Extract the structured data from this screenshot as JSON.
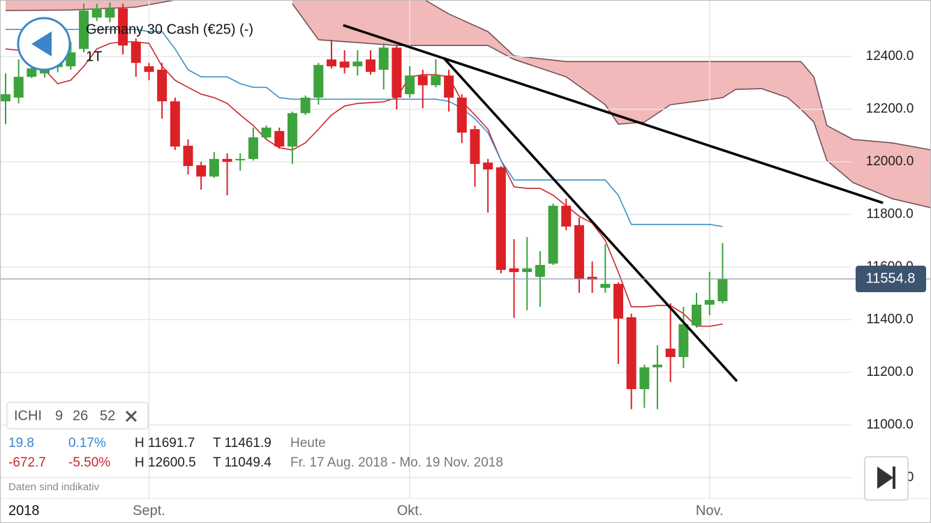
{
  "header": {
    "title": "Germany 30 Cash (€25) (-)",
    "period": "1T"
  },
  "indicator": {
    "name": "ICHI",
    "params": [
      9,
      26,
      52
    ]
  },
  "stats": {
    "rows": [
      [
        "19.8",
        "0.17%",
        "H 11691.7",
        "T 11461.9",
        "Heute"
      ],
      [
        "-672.7",
        "-5.50%",
        "H 12600.5",
        "T 11049.4",
        "Fr. 17 Aug. 2018 - Mo. 19 Nov. 2018"
      ]
    ]
  },
  "note": "Daten sind indikativ",
  "chart_data": {
    "type": "candlestick",
    "year_label": "2018",
    "categories": [
      null,
      null,
      null,
      null,
      null,
      null,
      null,
      null,
      null,
      null,
      null,
      "Sept.",
      null,
      null,
      null,
      null,
      null,
      null,
      null,
      null,
      null,
      null,
      null,
      null,
      null,
      null,
      null,
      null,
      null,
      null,
      null,
      "Okt.",
      null,
      null,
      null,
      null,
      null,
      null,
      null,
      null,
      null,
      null,
      null,
      null,
      null,
      null,
      null,
      null,
      null,
      null,
      null,
      null,
      null,
      null,
      "Nov.",
      null
    ],
    "open": [
      12230,
      12244,
      12323,
      12336,
      12360,
      12363,
      12429,
      12548,
      12548,
      12583,
      12456,
      12363,
      12350,
      12230,
      12061,
      11987,
      11944,
      12011,
      12008,
      12011,
      12093,
      12117,
      12058,
      12185,
      12244,
      12389,
      12381,
      12363,
      12389,
      12350,
      12434,
      12257,
      12328,
      12291,
      12328,
      12244,
      12124,
      11997,
      11979,
      11595,
      11581,
      11563,
      11613,
      11833,
      11759,
      11563,
      11521,
      11536,
      11409,
      11136,
      11219,
      11290,
      11258,
      11378,
      11457,
      11470
    ],
    "high": [
      12336,
      12389,
      12381,
      12390,
      12420,
      12456,
      12601,
      12601,
      12605,
      12601,
      12469,
      12376,
      12376,
      12244,
      12085,
      12000,
      12037,
      12032,
      12032,
      12130,
      12138,
      12130,
      12191,
      12252,
      12376,
      12464,
      12424,
      12424,
      12424,
      12450,
      12442,
      12363,
      12350,
      12389,
      12350,
      12257,
      12138,
      12011,
      11984,
      11706,
      11714,
      11661,
      11841,
      11860,
      11788,
      11621,
      11687,
      11542,
      11423,
      11229,
      11303,
      11462,
      11449,
      11502,
      11582,
      11691.7
    ],
    "low": [
      12143,
      12222,
      12318,
      12320,
      12340,
      12350,
      12416,
      12535,
      12530,
      12408,
      12323,
      12310,
      12164,
      12045,
      11952,
      11894,
      11939,
      11873,
      11966,
      12005,
      12085,
      12050,
      11992,
      12178,
      12217,
      12355,
      12336,
      12328,
      12331,
      12275,
      12199,
      12244,
      12204,
      12283,
      12191,
      12071,
      11905,
      11807,
      11576,
      11407,
      11436,
      11449,
      11608,
      11740,
      11502,
      11502,
      11502,
      11232,
      11060,
      11065,
      11060,
      11163,
      11216,
      11370,
      11417,
      11461.9
    ],
    "close": [
      12257,
      12323,
      12355,
      12363,
      12395,
      12416,
      12575,
      12583,
      12583,
      12442,
      12376,
      12342,
      12230,
      12058,
      11984,
      11944,
      12011,
      12000,
      12011,
      12093,
      12130,
      12058,
      12185,
      12244,
      12368,
      12363,
      12358,
      12381,
      12342,
      12434,
      12244,
      12328,
      12291,
      12328,
      12244,
      12111,
      11992,
      11971,
      11589,
      11581,
      11595,
      11608,
      11833,
      11754,
      11555,
      11552,
      11536,
      11404,
      11136,
      11219,
      11229,
      11258,
      11383,
      11457,
      11475,
      11554.8
    ],
    "up_color": "#3da33d",
    "down_color": "#dc2126",
    "last_price": 11554.8,
    "lines": [
      {
        "color": "#c8282d",
        "values": [
          12429,
          12424,
          12389,
          12350,
          12297,
          12310,
          12363,
          12429,
          12450,
          12456,
          12456,
          12450,
          12363,
          12310,
          12283,
          12257,
          12244,
          12222,
          12178,
          12138,
          12085,
          12053,
          12045,
          12072,
          12124,
          12178,
          12212,
          12222,
          12225,
          12228,
          12244,
          12323,
          12331,
          12331,
          12323,
          12230,
          12178,
          12124,
          12005,
          11905,
          11899,
          11899,
          11873,
          11833,
          11793,
          11767,
          11701,
          11581,
          11449,
          11449,
          11454,
          11454,
          11423,
          11375,
          11375,
          11383
        ]
      },
      {
        "color": "#3f8fc4",
        "values": [
          12503,
          12503,
          12503,
          12503,
          12503,
          12503,
          12503,
          12503,
          12503,
          12503,
          12503,
          12495,
          12495,
          12429,
          12350,
          12323,
          12323,
          12323,
          12297,
          12283,
          12283,
          12244,
          12238,
          12238,
          12238,
          12238,
          12238,
          12238,
          12238,
          12238,
          12238,
          12238,
          12238,
          12238,
          12230,
          12204,
          12164,
          12111,
          12005,
          11931,
          11931,
          11931,
          11931,
          11931,
          11931,
          11931,
          11931,
          11873,
          11762,
          11762,
          11762,
          11762,
          11762,
          11762,
          11762,
          11754
        ]
      }
    ],
    "cloud": {
      "color": "#f1b9b9",
      "edge_color": "#6b4a50",
      "x": [
        0,
        5,
        10,
        13,
        17,
        22,
        24,
        30,
        32,
        34,
        37,
        39,
        43,
        46,
        47,
        49,
        51,
        53,
        55,
        56,
        58,
        60,
        61,
        62,
        63,
        65,
        68,
        71
      ],
      "upper": [
        12680,
        12680,
        12680,
        12680,
        null,
        12680,
        12680,
        12680,
        12620,
        12562,
        12495,
        12403,
        12381,
        12381,
        12381,
        12381,
        12381,
        12381,
        12381,
        12381,
        12381,
        12381,
        12381,
        12323,
        12138,
        12085,
        12072,
        12045
      ],
      "lower": [
        12575,
        12577,
        12588,
        12615,
        null,
        12601,
        12464,
        12442,
        12442,
        12442,
        12442,
        12389,
        12323,
        12217,
        12143,
        12151,
        12217,
        12230,
        12244,
        12275,
        12278,
        12244,
        12200,
        12151,
        12005,
        11921,
        11860,
        11825
      ]
    },
    "trendlines": [
      {
        "x": [
          25.9,
          67.3
        ],
        "y": [
          12519,
          11844
        ]
      },
      {
        "x": [
          33.6,
          56.1
        ],
        "y": [
          12395,
          11166
        ]
      }
    ],
    "ylim": [
      10720,
      12615
    ],
    "yticks": [
      {
        "value": 10800,
        "label": "10800.0"
      },
      {
        "value": 11000,
        "label": "11000.0"
      },
      {
        "value": 11200,
        "label": "11200.0"
      },
      {
        "value": 11400,
        "label": "11400.0"
      },
      {
        "value": 11600,
        "label": "11600.0"
      },
      {
        "value": 11800,
        "label": "11800.0"
      },
      {
        "value": 12000,
        "label": "12000.0"
      },
      {
        "value": 12200,
        "label": "12200.0"
      },
      {
        "value": 12400,
        "label": "12400.0"
      }
    ],
    "grid": true
  }
}
